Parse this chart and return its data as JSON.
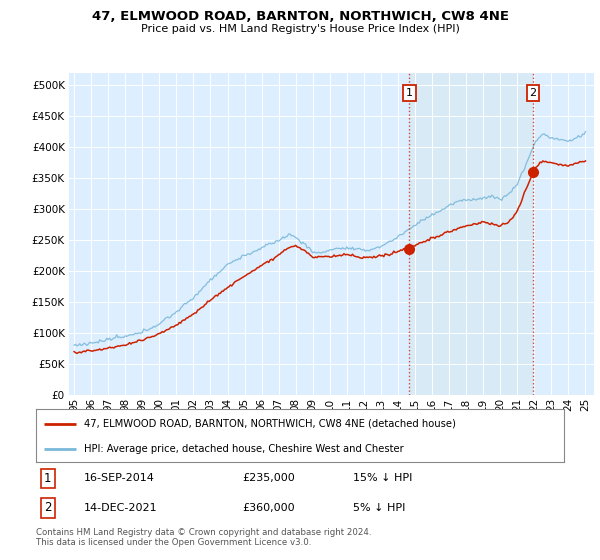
{
  "title": "47, ELMWOOD ROAD, BARNTON, NORTHWICH, CW8 4NE",
  "subtitle": "Price paid vs. HM Land Registry's House Price Index (HPI)",
  "legend_line1": "47, ELMWOOD ROAD, BARNTON, NORTHWICH, CW8 4NE (detached house)",
  "legend_line2": "HPI: Average price, detached house, Cheshire West and Chester",
  "footer": "Contains HM Land Registry data © Crown copyright and database right 2024.\nThis data is licensed under the Open Government Licence v3.0.",
  "transaction1_date": "16-SEP-2014",
  "transaction1_price": "£235,000",
  "transaction1_hpi": "15% ↓ HPI",
  "transaction2_date": "14-DEC-2021",
  "transaction2_price": "£360,000",
  "transaction2_hpi": "5% ↓ HPI",
  "hpi_color": "#7ab8d9",
  "price_color": "#cc2200",
  "shade_color": "#d8eaf5",
  "background_color": "#ffffff",
  "plot_bg_color": "#ddeeff",
  "ylim": [
    0,
    520000
  ],
  "yticks": [
    0,
    50000,
    100000,
    150000,
    200000,
    250000,
    300000,
    350000,
    400000,
    450000,
    500000
  ],
  "t1_year": 2014.708,
  "t2_year": 2021.958,
  "t1_price": 235000,
  "t2_price": 360000
}
